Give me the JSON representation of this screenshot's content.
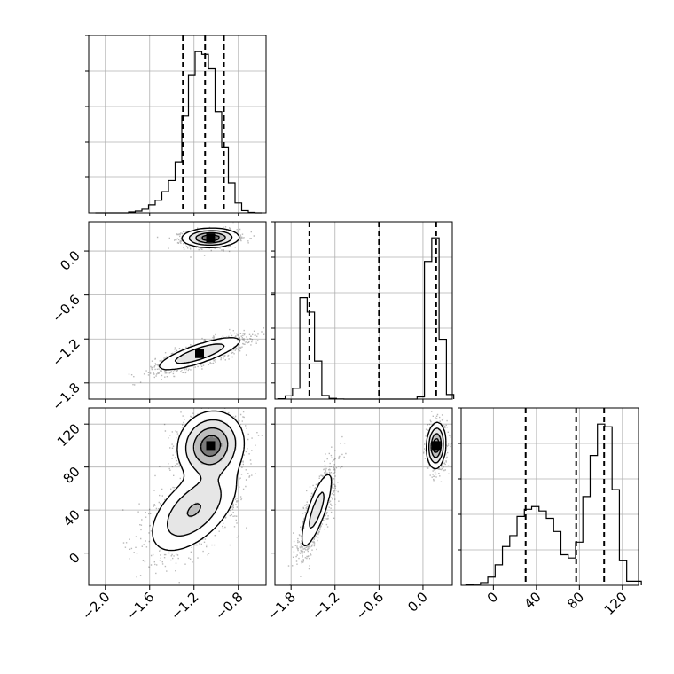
{
  "chart_data": {
    "type": "corner",
    "grid": true,
    "parameters": [
      {
        "key": "p0",
        "range": [
          -2.15,
          -0.55
        ],
        "ticks": [
          -2.0,
          -1.6,
          -1.2,
          -0.8
        ],
        "tick_labels": [
          "−2.0",
          "−1.6",
          "−1.2",
          "−0.8"
        ],
        "quantiles": [
          -1.3,
          -1.1,
          -0.93
        ]
      },
      {
        "key": "p1",
        "range": [
          -2.02,
          0.4
        ],
        "ticks": [
          -1.8,
          -1.2,
          -0.6,
          0.0
        ],
        "tick_labels": [
          "−1.8",
          "−1.2",
          "−0.6",
          "0.0"
        ],
        "quantiles": [
          -1.55,
          -0.6,
          0.18
        ]
      },
      {
        "key": "p2",
        "range": [
          -30,
          135
        ],
        "ticks": [
          0,
          40,
          80,
          120
        ],
        "tick_labels": [
          "0",
          "40",
          "80",
          "120"
        ],
        "quantiles": [
          30,
          77,
          103
        ]
      }
    ],
    "histograms": [
      {
        "param": "p0",
        "bin_edges": [
          -2.09,
          -2.03,
          -1.97,
          -1.91,
          -1.85,
          -1.79,
          -1.73,
          -1.67,
          -1.61,
          -1.55,
          -1.49,
          -1.43,
          -1.37,
          -1.31,
          -1.25,
          -1.19,
          -1.13,
          -1.07,
          -1.01,
          -0.95,
          -0.89,
          -0.83,
          -0.77,
          -0.71,
          -0.65,
          -0.59
        ],
        "counts": [
          0,
          0,
          0,
          0,
          0,
          2,
          4,
          8,
          18,
          28,
          47,
          72,
          112,
          215,
          305,
          358,
          352,
          320,
          225,
          145,
          67,
          22,
          5,
          1,
          0
        ]
      },
      {
        "param": "p1",
        "bin_edges": [
          -1.98,
          -1.88,
          -1.78,
          -1.68,
          -1.58,
          -1.48,
          -1.38,
          -1.28,
          -1.18,
          -1.08,
          -0.98,
          -0.88,
          -0.78,
          -0.68,
          -0.58,
          -0.48,
          -0.38,
          -0.28,
          -0.18,
          -0.08,
          0.02,
          0.12,
          0.22,
          0.32,
          0.42
        ],
        "counts": [
          2,
          18,
          60,
          560,
          480,
          210,
          20,
          4,
          1,
          0,
          0,
          0,
          0,
          0,
          0,
          0,
          0,
          0,
          0,
          12,
          760,
          890,
          330,
          25
        ]
      },
      {
        "param": "p2",
        "bin_edges": [
          -25.6,
          -18.8,
          -12.0,
          -5.2,
          1.6,
          8.4,
          15.2,
          22.0,
          28.8,
          35.6,
          42.4,
          49.2,
          56.0,
          62.8,
          69.6,
          76.4,
          83.2,
          90.0,
          96.8,
          103.6,
          110.4,
          117.2,
          124.0,
          130.8,
          137.6
        ],
        "counts": [
          2,
          4,
          10,
          30,
          75,
          142,
          182,
          252,
          278,
          288,
          272,
          245,
          197,
          112,
          100,
          158,
          325,
          475,
          590,
          580,
          350,
          90,
          15,
          15
        ]
      }
    ],
    "pairs": [
      {
        "x": "p0",
        "y": "p1",
        "clusters": [
          {
            "mean": [
              -1.05,
              0.18
            ],
            "sd": [
              0.12,
              0.06
            ],
            "corr": 0.05,
            "weight": 0.5
          },
          {
            "mean": [
              -1.15,
              -1.4
            ],
            "sd": [
              0.2,
              0.12
            ],
            "corr": 0.8,
            "weight": 0.5
          }
        ]
      },
      {
        "x": "p0",
        "y": "p2",
        "clusters": [
          {
            "mean": [
              -1.05,
              100
            ],
            "sd": [
              0.14,
              15
            ],
            "corr": 0.1,
            "weight": 0.52
          },
          {
            "mean": [
              -1.2,
              40
            ],
            "sd": [
              0.2,
              20
            ],
            "corr": 0.55,
            "weight": 0.48
          }
        ]
      },
      {
        "x": "p1",
        "y": "p2",
        "clusters": [
          {
            "mean": [
              0.18,
              100
            ],
            "sd": [
              0.06,
              10
            ],
            "corr": 0.1,
            "weight": 0.52
          },
          {
            "mean": [
              -1.45,
              40
            ],
            "sd": [
              0.12,
              20
            ],
            "corr": 0.8,
            "weight": 0.48
          }
        ]
      }
    ]
  }
}
